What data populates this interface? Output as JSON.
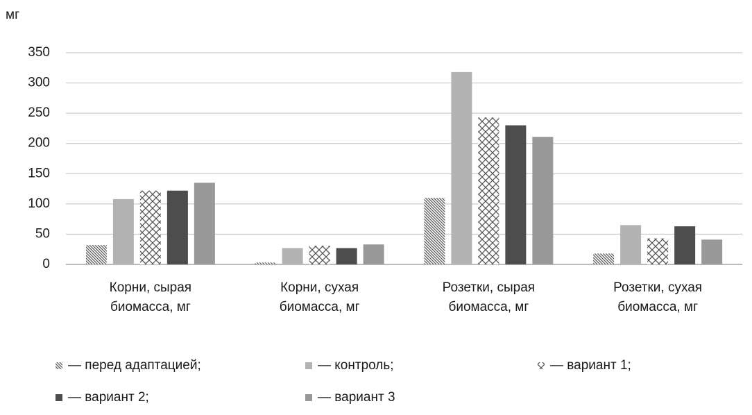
{
  "chart_data": {
    "type": "bar",
    "y_label": "мг",
    "categories": [
      "Корни, сырая биомасса, мг",
      "Корни, сухая биомасса, мг",
      "Розетки, сырая биомасса, мг",
      "Розетки, сухая биомасса, мг"
    ],
    "series": [
      {
        "name": "— перед адаптацией;",
        "color": "#555555",
        "pattern": "diagonal",
        "values": [
          32,
          3,
          110,
          18
        ]
      },
      {
        "name": "— контроль;",
        "color": "#b3b3b3",
        "values": [
          108,
          27,
          318,
          65
        ]
      },
      {
        "name": "— вариант 1;",
        "color": "#555555",
        "pattern": "cross",
        "values": [
          122,
          31,
          243,
          43
        ]
      },
      {
        "name": "— вариант 2;",
        "color": "#4d4d4d",
        "values": [
          122,
          27,
          230,
          63
        ]
      },
      {
        "name": "— вариант 3",
        "color": "#999999",
        "values": [
          135,
          33,
          211,
          41
        ]
      }
    ],
    "ylim": [
      0,
      350
    ],
    "yticks": [
      0,
      50,
      100,
      150,
      200,
      250,
      300,
      350
    ],
    "grid": true
  }
}
